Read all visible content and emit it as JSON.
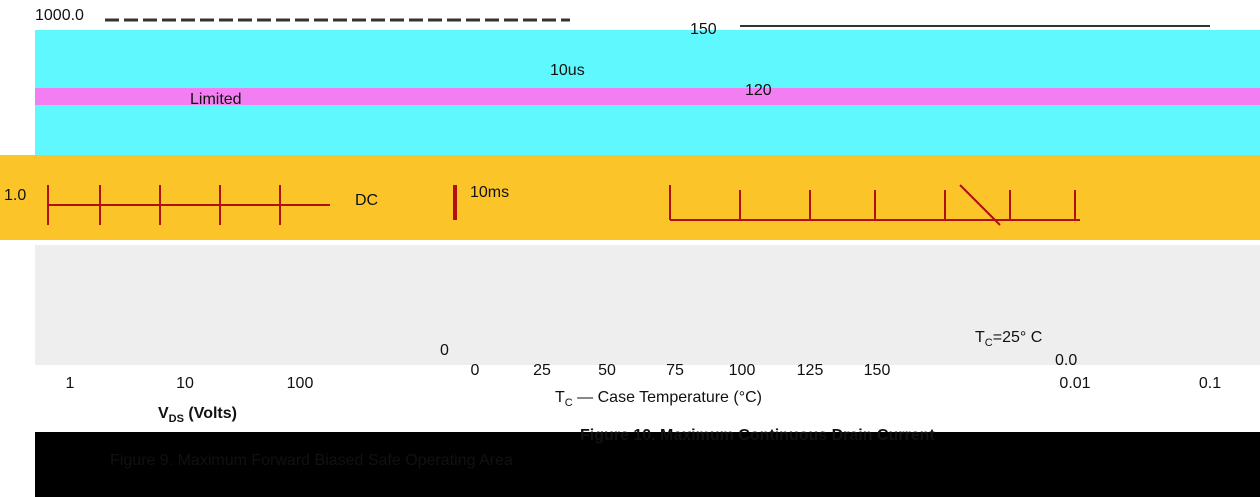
{
  "left_chart": {
    "y_labels": [
      "1000.0",
      "1.0"
    ],
    "annotations": [
      "10us",
      "Limited",
      "DC",
      "10ms"
    ],
    "x_labels": [
      "1",
      "10",
      "100"
    ],
    "x_axis_label": {
      "main": "V",
      "sub": "DS",
      "rest": " (Volts)"
    },
    "caption": "Figure 9. Maximum Forward Biased Safe Operating Area"
  },
  "middle_chart": {
    "y_labels": [
      "150",
      "120",
      "0"
    ],
    "x_labels": [
      "0",
      "25",
      "50",
      "75",
      "100",
      "125",
      "150"
    ],
    "x_axis_label": {
      "main": "T",
      "sub": "C",
      "rest": " — Case Temperature (°C)"
    },
    "caption": "Figure 10. Maximum Continuous Drain Current"
  },
  "right_chart": {
    "y_labels": [
      "0.0"
    ],
    "x_labels": [
      "0.01",
      "0.1"
    ],
    "annotation": {
      "main": "T",
      "sub": "C",
      "rest": "=25° C"
    }
  }
}
